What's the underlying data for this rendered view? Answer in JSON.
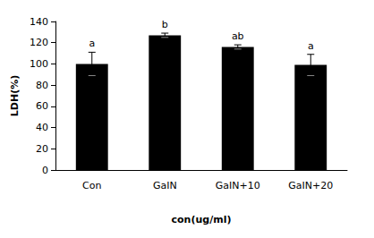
{
  "chart_data": {
    "type": "bar",
    "x_label": "con(ug/ml)",
    "y_label": "LDH(%)",
    "categories": [
      "Con",
      "GaIN",
      "GaIN+10",
      "GaIN+20"
    ],
    "values": [
      100,
      127,
      116,
      99
    ],
    "errors": [
      11,
      2,
      2,
      10
    ],
    "annotations": [
      "a",
      "b",
      "ab",
      "a"
    ],
    "color": "#000000",
    "ylim": [
      0,
      140
    ],
    "yticks": [
      0,
      20,
      40,
      60,
      80,
      100,
      120,
      140
    ],
    "grid": false
  }
}
